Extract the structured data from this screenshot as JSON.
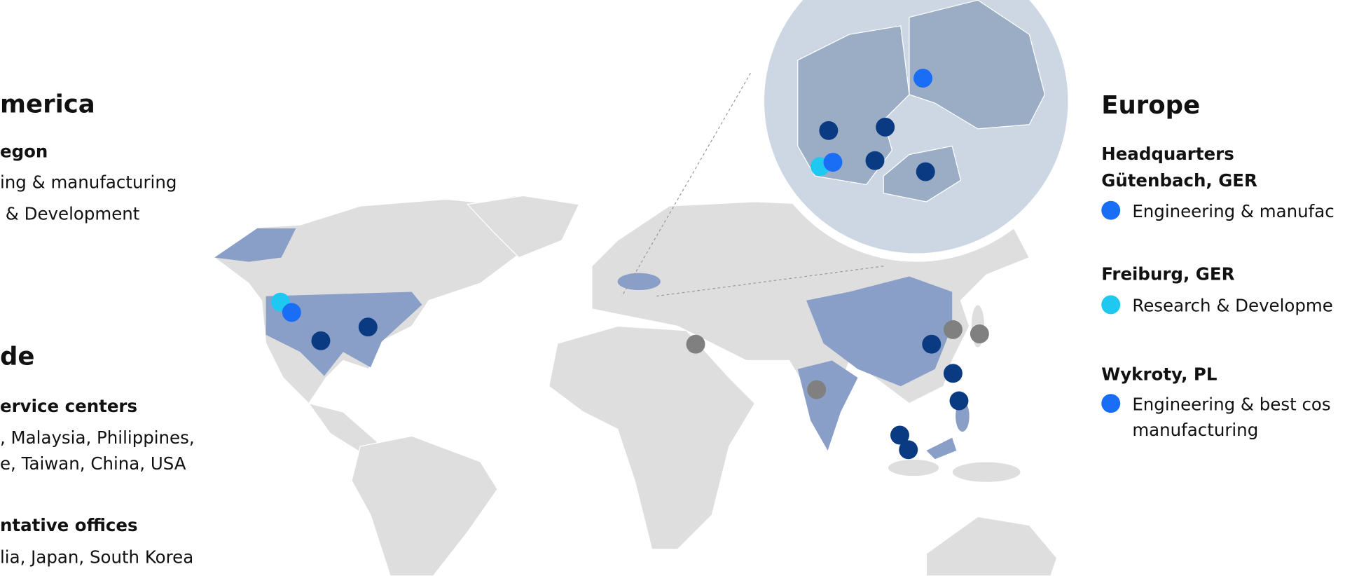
{
  "left_panel": {
    "region_title": "merica",
    "site": "egon",
    "lines": [
      "ing & manufacturing",
      " & Development"
    ],
    "section2_title": "de",
    "service_title": "ervice centers",
    "service_lines": [
      ", Malaysia, Philippines,",
      "e, Taiwan, China, USA"
    ],
    "offices_title": "ntative offices",
    "offices_lines": [
      "lia, Japan, South Korea"
    ]
  },
  "right_panel": {
    "region_title": "Europe",
    "sites": [
      {
        "title": [
          "Headquarters",
          "Gütenbach, GER"
        ],
        "lines": [
          "Engineering & manufac"
        ]
      },
      {
        "title": [
          "Freiburg, GER"
        ],
        "lines": [
          "Research & Developme"
        ]
      },
      {
        "title": [
          "Wykroty, PL"
        ],
        "lines": [
          "Engineering & best cos",
          "manufacturing"
        ]
      }
    ]
  }
}
